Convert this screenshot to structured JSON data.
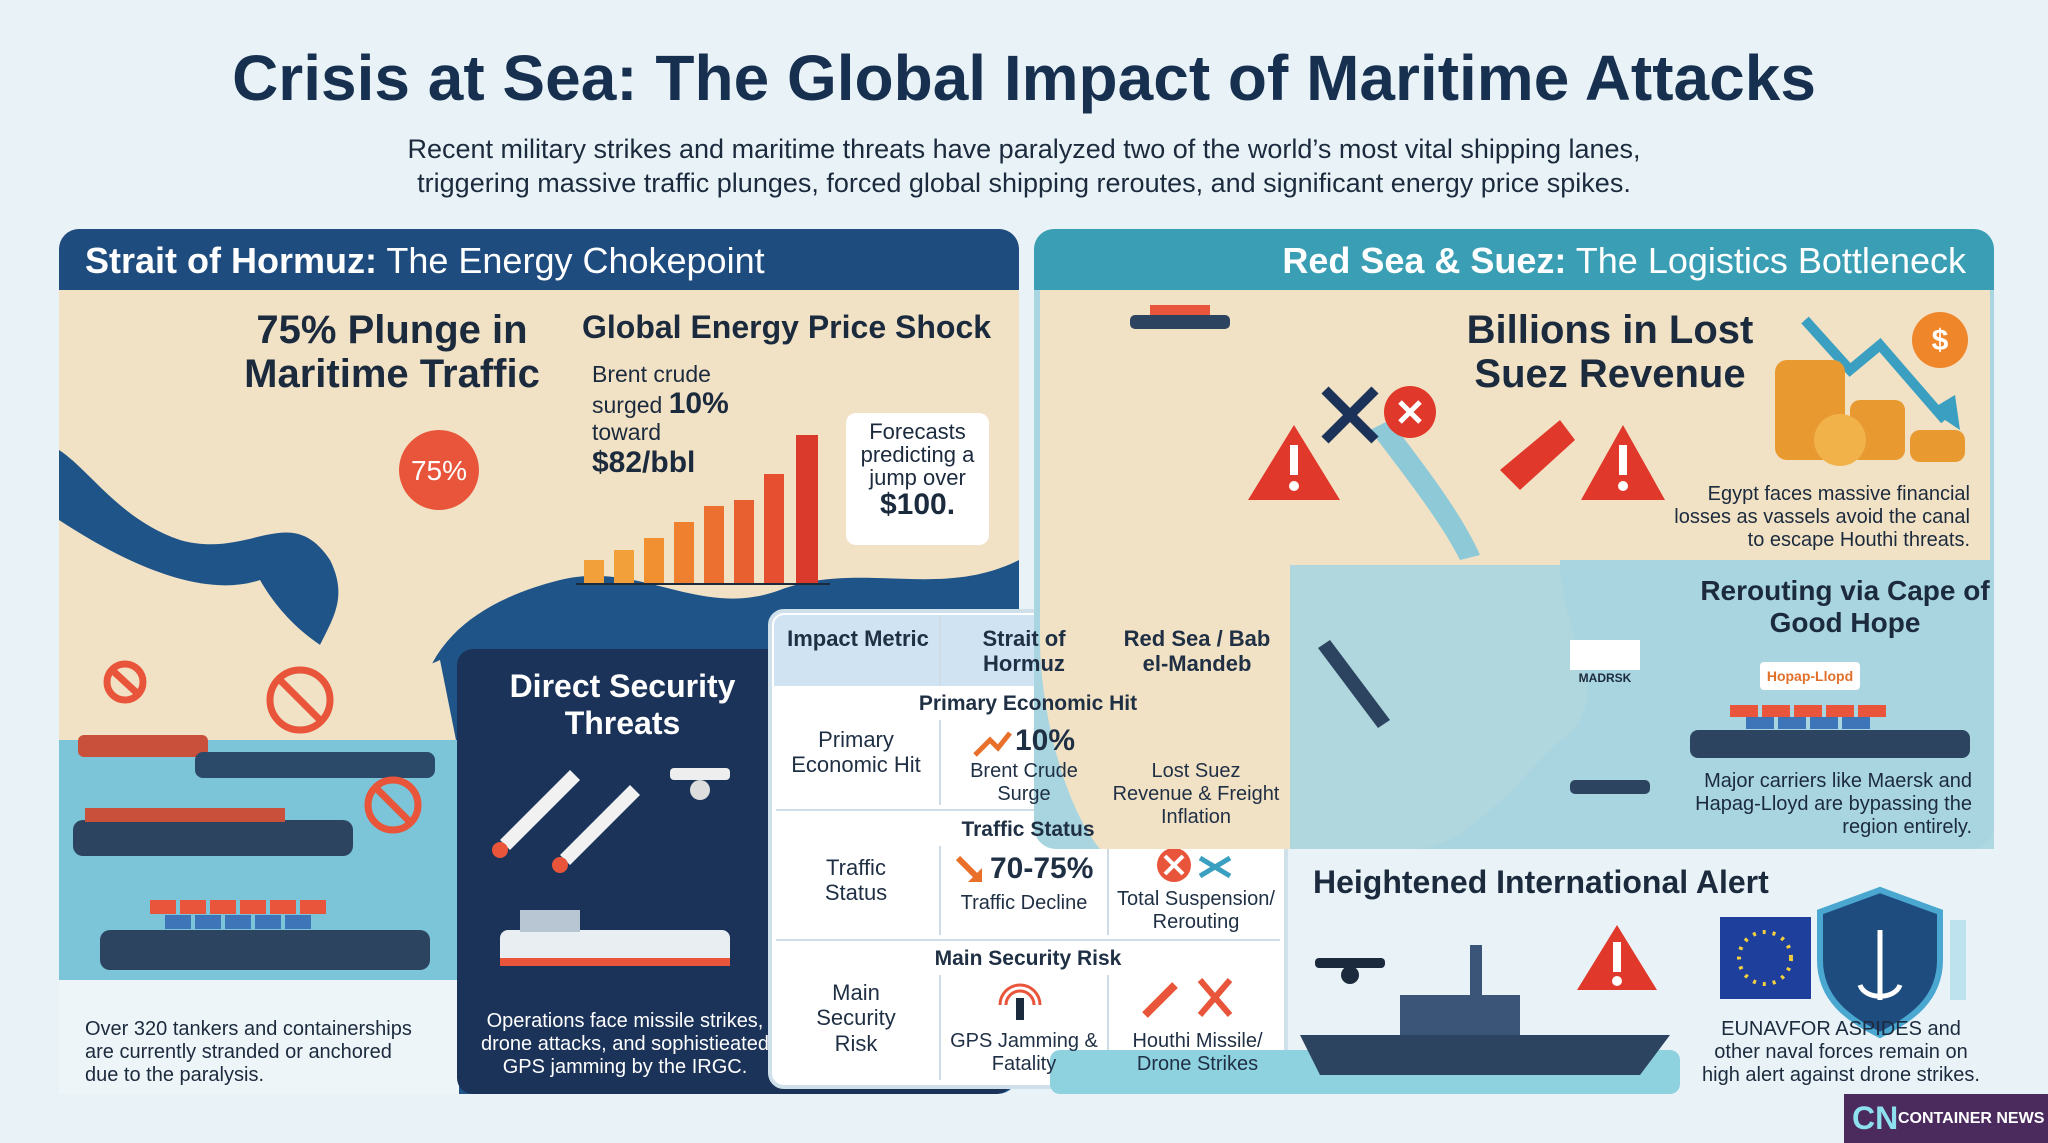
{
  "header": {
    "title": "Crisis at Sea: The Global Impact of Maritime Attacks",
    "subtitle": [
      "Recent military strikes and maritime threats have paralyzed two of the world’s most vital shipping lanes,",
      "triggering massive traffic plunges, forced global shipping reroutes, and significant energy price spikes."
    ]
  },
  "hormuz": {
    "heading_bold": "Strait of Hormuz:",
    "heading_rest": "The Energy Chokepoint",
    "traffic_headline": "75% Plunge in Maritime Traffic",
    "badge": "75%",
    "price_title": "Global Energy Price Shock",
    "brent": {
      "line1": "Brent crude",
      "verb": "surged",
      "pct": "10%",
      "prep": "toward",
      "price": "$82/bbl"
    },
    "forecast": {
      "text": "Forecasts predicting a jump over",
      "price": "$100."
    },
    "stranded_note": "Over 320 tankers and containerships are currently stranded or anchored due to the paralysis.",
    "threats_title": "Direct Security Threats",
    "threats_note": "Operations face missile strikes, drone attacks, and sophistieated GPS jamming by the IRGC."
  },
  "red_sea": {
    "heading_bold": "Red Sea & Suez:",
    "heading_rest": "The Logistics Bottleneck",
    "revenue_headline": "Billions in Lost Suez Revenue",
    "currency_icon": "$",
    "revenue_note": "Egypt faces massive financial losses as vassels avoid the canal to escape Houthi threats.",
    "reroute_title": "Rerouting via Cape of Good Hope",
    "carrier_logos": [
      "MADRSK",
      "Hopap-Llopd"
    ],
    "reroute_note": "Major carriers like Maersk and Hapag-Lloyd are bypassing the region entirely.",
    "alert_title": "Heightened International Alert",
    "alert_note": "EUNAVFOR ASPIDES and other naval forces remain on high alert against drone strikes."
  },
  "table": {
    "headers": [
      "Impact Metric",
      "Strait of Hormuz",
      "Red Sea / Bab el-Mandeb"
    ],
    "sections": [
      {
        "title": "Primary Economic Hit",
        "label": "Primary Economic Hit",
        "hormuz_value": "10%",
        "hormuz_caption": "Brent Crude Surge",
        "red_sea": "Lost Suez Revenue & Freight Inflation"
      },
      {
        "title": "Traffic Status",
        "label": "Traffic Status",
        "hormuz_value": "70-75%",
        "hormuz_caption": "Traffic Decline",
        "red_sea": "Total Suspension/ Rerouting"
      },
      {
        "title": "Main Security Risk",
        "label": "Main Security Risk",
        "hormuz_caption": "GPS Jamming & Fatality",
        "red_sea": "Houthi Missile/ Drone Strikes"
      }
    ]
  },
  "footer": {
    "logo": "CN",
    "brand": "CONTAINER NEWS"
  }
}
